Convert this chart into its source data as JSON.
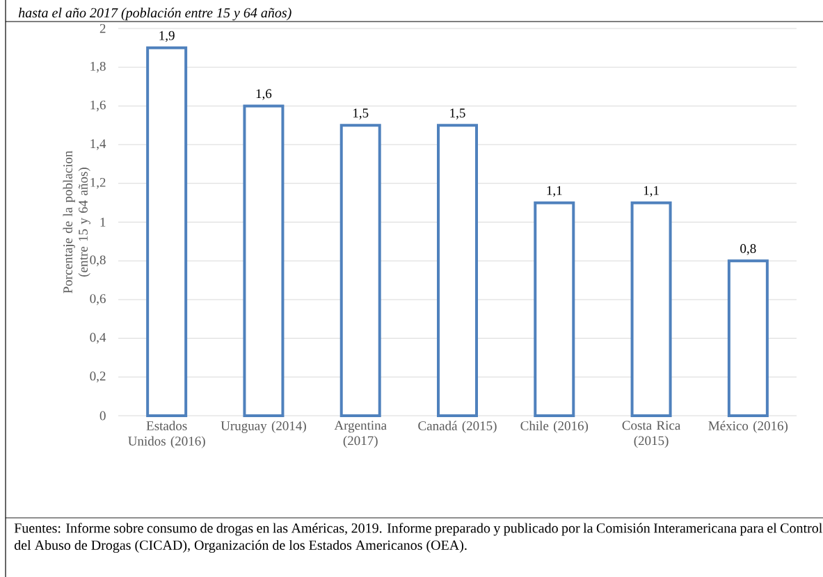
{
  "chart_data": {
    "type": "bar",
    "title": "*hasta el año 2017 (población entre 15 y 64 años)*",
    "ylabel": "Porcentaje de la poblacion (entre 15 y 64 años)",
    "categories": [
      "Estados Unidos (2016)",
      "Uruguay (2014)",
      "Argentina (2017)",
      "Canadá (2015)",
      "Chile (2016)",
      "Costa Rica (2015)",
      "México (2016)"
    ],
    "values": [
      1.9,
      1.6,
      1.5,
      1.5,
      1.1,
      1.1,
      0.8
    ],
    "value_labels": [
      "1,9",
      "1,6",
      "1,5",
      "1,5",
      "1,1",
      "1,1",
      "0,8"
    ],
    "color": "#4f81bd",
    "ylim": [
      0,
      2
    ],
    "yticks": [
      0,
      {
        "value": 0.2,
        "label": "0,2"
      },
      {
        "value": 0.4,
        "label": "0,4"
      },
      {
        "value": 0.6,
        "label": "0,6"
      },
      {
        "value": 0.8,
        "label": "0,8"
      },
      1,
      {
        "value": 1.2,
        "label": "1,2"
      },
      {
        "value": 1.4,
        "label": "1,4"
      },
      {
        "value": 1.6,
        "label": "1,6"
      },
      {
        "value": 1.8,
        "label": "1,8"
      },
      2
    ],
    "grid": "y",
    "annotations": [
      "Fuentes: Informe sobre consumo de drogas en las Américas, 2019. Informe preparado y publicado por la Comisión Interamericana para el Control del Abuso de Drogas (CICAD), Organización de los Estados Americanos (OEA)."
    ]
  }
}
